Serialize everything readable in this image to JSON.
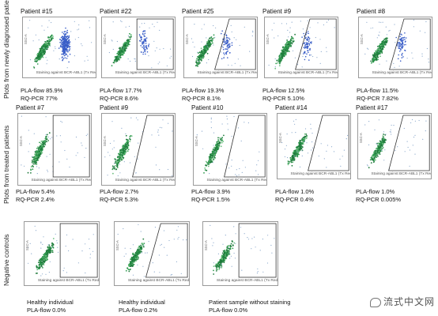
{
  "row_labels": [
    "Plots from newly diagnosed patients",
    "Plots from treated patients",
    "Negative controls"
  ],
  "x_axis_label": "Staining against BCR-ABL1 (Tx Red)",
  "y_axis_label": "SSC-A",
  "panels": [
    {
      "title": "Patient #15",
      "lines": [
        "PLA-flow 85.9%",
        "RQ-PCR 77%"
      ],
      "density": "high",
      "gate": "blue"
    },
    {
      "title": "Patient #22",
      "lines": [
        "PLA-flow 17.7%",
        "RQ-PCR 8.6%"
      ],
      "density": "mid",
      "gate": "rect"
    },
    {
      "title": "Patient #25",
      "lines": [
        "PLA-flow 19.3%",
        "RQ-PCR 8.1%"
      ],
      "density": "mid",
      "gate": "poly"
    },
    {
      "title": "Patient #9",
      "lines": [
        "PLA-flow 12.5%",
        "RQ-PCR 5.10%"
      ],
      "density": "mid",
      "gate": "poly"
    },
    {
      "title": "Patient #8",
      "lines": [
        "PLA-flow 11.5%",
        "RQ-PCR 7.82%"
      ],
      "density": "mid",
      "gate": "poly"
    },
    {
      "title": "Patient #7",
      "lines": [
        "PLA-flow 5.4%",
        "RQ-PCR 2.4%"
      ],
      "density": "low",
      "gate": "rect"
    },
    {
      "title": "Patient #9",
      "lines": [
        "PLA-flow 2.7%",
        "RQ-PCR 5.3%"
      ],
      "density": "low",
      "gate": "poly"
    },
    {
      "title": "Patient #10",
      "lines": [
        "PLA-flow 3.9%",
        "RQ-PCR 1.5%"
      ],
      "density": "low",
      "gate": "poly"
    },
    {
      "title": "Patient #14",
      "lines": [
        "PLA-flow 1.0%",
        "RQ-PCR 0.4%"
      ],
      "density": "low",
      "gate": "poly"
    },
    {
      "title": "Patient #17",
      "lines": [
        "PLA-flow 1.0%",
        "RQ-PCR 0.005%"
      ],
      "density": "low",
      "gate": "poly"
    },
    {
      "title": "",
      "lines": [
        "Healthy individual",
        "PLA-flow 0.0%"
      ],
      "density": "low",
      "gate": "rect"
    },
    {
      "title": "",
      "lines": [
        "Healthy individual",
        "PLA-flow 0.2%"
      ],
      "density": "low",
      "gate": "poly"
    },
    {
      "title": "",
      "lines": [
        "Patient sample without staining",
        "PLA-flow 0.0%"
      ],
      "density": "low",
      "gate": "rect"
    }
  ],
  "watermark": "流式中文网"
}
